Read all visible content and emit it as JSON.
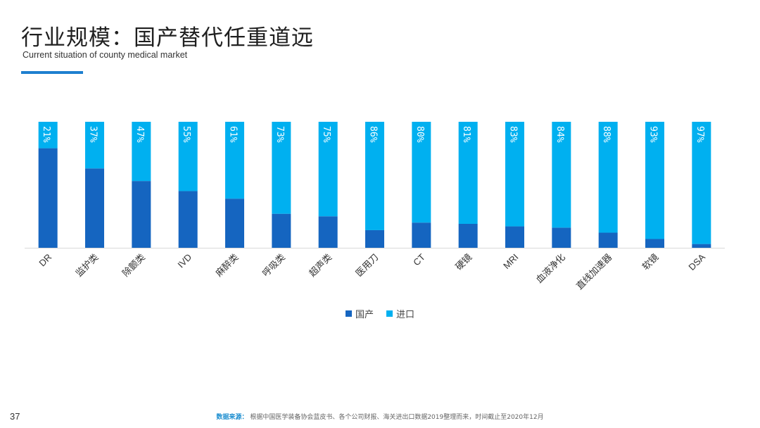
{
  "header": {
    "title": "行业规模：国产替代任重道远",
    "subtitle": "Current situation of county medical market"
  },
  "colors": {
    "domestic": "#1565C0",
    "imported": "#00B0F0",
    "accent": "#1E7FCF"
  },
  "chart_data": {
    "type": "bar",
    "stacked": true,
    "categories": [
      "DR",
      "监护类",
      "除颤类",
      "IVD",
      "麻醉类",
      "呼吸类",
      "超声类",
      "医用刀",
      "CT",
      "硬镜",
      "MRI",
      "血液净化",
      "直线加速器",
      "软镜",
      "DSA"
    ],
    "series": [
      {
        "name": "国产",
        "values": [
          79,
          63,
          53,
          45,
          39,
          27,
          25,
          14,
          20,
          19,
          17,
          16,
          12,
          7,
          3
        ]
      },
      {
        "name": "进口",
        "values": [
          21,
          37,
          47,
          55,
          61,
          73,
          75,
          86,
          80,
          81,
          83,
          84,
          88,
          93,
          97
        ]
      }
    ],
    "data_labels": [
      "21%",
      "37%",
      "47%",
      "55%",
      "61%",
      "73%",
      "75%",
      "86%",
      "80%",
      "81%",
      "83%",
      "84%",
      "88%",
      "93%",
      "97%"
    ],
    "ylim": [
      0,
      100
    ],
    "legend_position": "bottom"
  },
  "footer": {
    "page_number": "37",
    "source_label": "数据来源：",
    "source_text": "根据中国医学装备协会蓝皮书、各个公司财报、海关进出口数据2019整理而来，时间截止至2020年12月"
  }
}
